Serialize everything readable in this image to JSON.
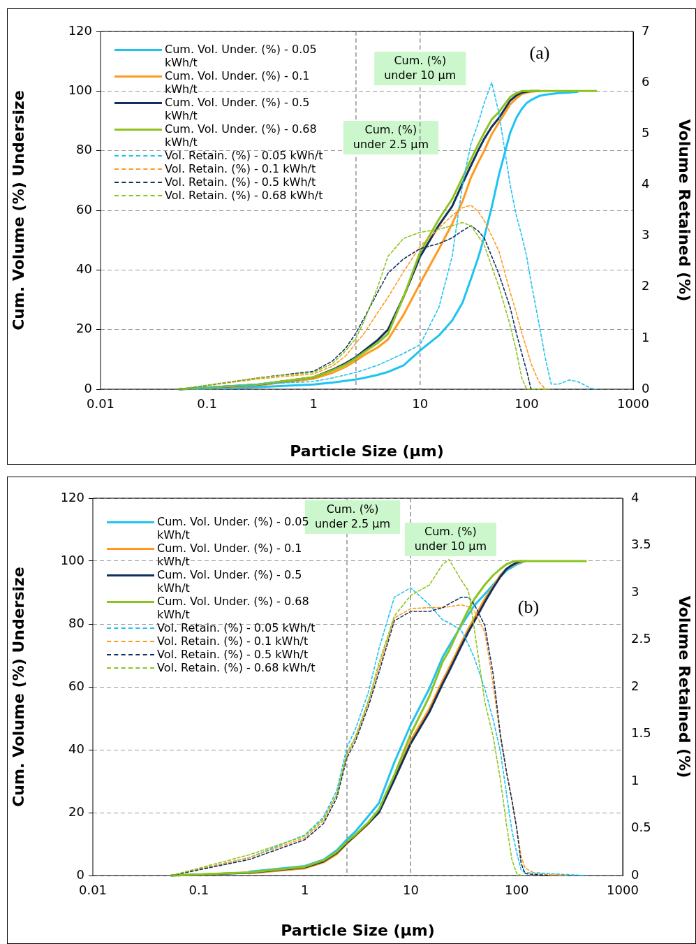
{
  "chart_data": [
    {
      "type": "line",
      "xlabel": "Particle Size (µm)",
      "ylabel": "Cum. Volume (%) Undersize",
      "y2label": "Volume Retained (%)",
      "log": "x",
      "grid": "y",
      "legend": "top left",
      "marker": "none",
      "xlim": [
        0.01,
        1000
      ],
      "xticks": [
        0.01,
        0.1,
        1,
        10,
        100,
        1000
      ],
      "ylim": [
        0,
        120
      ],
      "yticks": [
        0,
        20,
        40,
        60,
        80,
        100,
        120
      ],
      "y2lim": [
        0,
        7
      ],
      "y2ticks": [
        0,
        1,
        2,
        3,
        4,
        5,
        6,
        7
      ],
      "x": [
        0.055,
        0.3,
        1,
        1.5,
        2,
        2.5,
        3,
        4,
        5,
        7,
        10,
        15,
        20,
        25,
        30,
        35,
        40,
        47,
        55,
        70,
        80,
        90,
        100,
        110,
        130,
        150,
        170,
        200,
        250,
        300,
        400,
        450
      ],
      "series": [
        {
          "name": "Cum. Vol. Under. (%) - 0.05 kWh/t",
          "color": "#1ec3f2",
          "line_style": "solid",
          "values": [
            0,
            0.7,
            1.6,
            2.2,
            2.8,
            3.3,
            3.8,
            4.8,
            5.8,
            8,
            13,
            18,
            23,
            29,
            37,
            44,
            51,
            61,
            72,
            86,
            91,
            94,
            96,
            97,
            98.3,
            98.8,
            99,
            99.3,
            99.5,
            99.7,
            null,
            null
          ]
        },
        {
          "name": "Cum. Vol. Under. (%) - 0.1 kWh/t",
          "color": "#ff9a1e",
          "line_style": "solid",
          "values": [
            0,
            1.3,
            3.5,
            5.5,
            7.5,
            9.6,
            11.5,
            14,
            16.7,
            25,
            35.5,
            47,
            55.5,
            63,
            71,
            76,
            80,
            85.5,
            89.5,
            95.5,
            97.5,
            99,
            99.5,
            99.8,
            100,
            null,
            null,
            null,
            null,
            null,
            null,
            null
          ]
        },
        {
          "name": "Cum. Vol. Under. (%) - 0.5 kWh/t",
          "color": "#12305e",
          "line_style": "solid",
          "values": [
            0,
            1.5,
            4,
            6.5,
            8.7,
            10.8,
            13,
            16.5,
            20,
            31,
            44.5,
            55,
            61.4,
            69,
            75,
            80,
            84,
            88,
            91,
            96.8,
            98.5,
            99.5,
            99.8,
            100,
            100,
            null,
            null,
            null,
            null,
            null,
            null,
            null
          ]
        },
        {
          "name": "Cum. Vol. Under. (%) - 0.68 kWh/t",
          "color": "#8cc41e",
          "line_style": "solid",
          "values": [
            0,
            1.6,
            4,
            6.3,
            8.3,
            10.4,
            12.5,
            15.5,
            18.6,
            31,
            46,
            57,
            63.8,
            71,
            77,
            82,
            86,
            90.5,
            93,
            98,
            99.3,
            100,
            100,
            100,
            100,
            100,
            100,
            100,
            100,
            100,
            100,
            100
          ]
        },
        {
          "name": "Vol. Retain. (%) - 0.05 kWh/t",
          "color": "#1ec3f2",
          "line_style": "dashed",
          "axis": "y2",
          "values": [
            0,
            0.1,
            0.15,
            0.22,
            0.28,
            0.33,
            0.38,
            0.47,
            0.56,
            0.7,
            0.87,
            1.6,
            2.6,
            4,
            4.8,
            5.2,
            5.6,
            6,
            5.4,
            4,
            3.4,
            3,
            2.6,
            2.1,
            1.3,
            0.6,
            0.1,
            0.1,
            0.18,
            0.15,
            0.02,
            0
          ]
        },
        {
          "name": "Vol. Retain. (%) - 0.1 kWh/t",
          "color": "#ff9a1e",
          "line_style": "dashed",
          "axis": "y2",
          "values": [
            0,
            0.2,
            0.3,
            0.45,
            0.65,
            0.9,
            1.1,
            1.5,
            1.8,
            2.3,
            2.8,
            3.15,
            3.4,
            3.55,
            3.6,
            3.48,
            3.3,
            3,
            2.7,
            1.9,
            1.5,
            1.1,
            0.8,
            0.5,
            0.15,
            0,
            null,
            null,
            null,
            null,
            null,
            null
          ]
        },
        {
          "name": "Vol. Retain. (%) - 0.5 kWh/t",
          "color": "#12305e",
          "line_style": "dashed",
          "axis": "y2",
          "values": [
            0,
            0.22,
            0.35,
            0.55,
            0.8,
            1.1,
            1.4,
            1.9,
            2.27,
            2.55,
            2.75,
            2.85,
            2.96,
            3.1,
            3.2,
            3.1,
            2.96,
            2.6,
            2.25,
            1.6,
            1.1,
            0.7,
            0.36,
            0,
            null,
            null,
            null,
            null,
            null,
            null,
            null,
            null
          ]
        },
        {
          "name": "Vol. Retain. (%) - 0.68 kWh/t",
          "color": "#8cc41e",
          "line_style": "dashed",
          "axis": "y2",
          "values": [
            0,
            0.22,
            0.33,
            0.5,
            0.75,
            1,
            1.35,
            2,
            2.6,
            2.95,
            3.07,
            3.13,
            3.2,
            3.26,
            3.2,
            3,
            2.82,
            2.4,
            2,
            1.25,
            0.75,
            0.22,
            0,
            0,
            0,
            0,
            0,
            null,
            null,
            null,
            null,
            null
          ]
        }
      ],
      "ref_lines": [
        {
          "axis": "x",
          "value": 2.5,
          "label": "Cum. (%)\nunder 2.5 µm"
        },
        {
          "axis": "x",
          "value": 10,
          "label": "Cum. (%)\nunder 10 µm"
        }
      ],
      "annotations": [
        "(a)"
      ]
    },
    {
      "type": "line",
      "xlabel": "Particle Size (µm)",
      "ylabel": "Cum. Volume (%) Undersize",
      "y2label": "Volume Retained (%)",
      "log": "x",
      "grid": "y",
      "legend": "top left",
      "marker": "none",
      "xlim": [
        0.01,
        1000
      ],
      "xticks": [
        0.01,
        0.1,
        1,
        10,
        100,
        1000
      ],
      "ylim": [
        0,
        120
      ],
      "yticks": [
        0,
        20,
        40,
        60,
        80,
        100,
        120
      ],
      "y2lim": [
        0,
        4
      ],
      "y2ticks": [
        0,
        0.5,
        1,
        1.5,
        2,
        2.5,
        3,
        3.5,
        4
      ],
      "x": [
        0.055,
        0.3,
        1,
        1.5,
        2,
        2.5,
        3,
        4,
        5,
        7,
        10,
        15,
        20,
        23,
        30,
        35,
        40,
        50,
        60,
        70,
        80,
        90,
        100,
        110,
        120,
        150,
        200,
        300,
        450
      ],
      "series": [
        {
          "name": "Cum. Vol. Under. (%) - 0.05 kWh/t",
          "color": "#1ec3f2",
          "line_style": "solid",
          "values": [
            null,
            1.2,
            3,
            5,
            8,
            11.5,
            14,
            19,
            23,
            36,
            48,
            59.5,
            69.5,
            73,
            79.5,
            83,
            86,
            89.5,
            92.5,
            95,
            97,
            98,
            99,
            99.5,
            100,
            null,
            null,
            null,
            null
          ]
        },
        {
          "name": "Cum. Vol. Under. (%) - 0.1 kWh/t",
          "color": "#ff9a1e",
          "line_style": "solid",
          "values": [
            null,
            0.7,
            2.3,
            4.2,
            6.8,
            10.2,
            12.6,
            16.5,
            20.5,
            31,
            43,
            53,
            62,
            66,
            74,
            78.5,
            82,
            88,
            92,
            95.5,
            97.5,
            98.5,
            99.3,
            99.7,
            100,
            null,
            null,
            null,
            null
          ]
        },
        {
          "name": "Cum. Vol. Under. (%) - 0.5 kWh/t",
          "color": "#12305e",
          "line_style": "solid",
          "values": [
            0,
            0.9,
            2.6,
            4.5,
            7.2,
            10.4,
            12.8,
            16.7,
            20,
            30.5,
            42,
            52,
            61,
            65,
            73,
            77.5,
            81,
            87,
            91.5,
            95,
            97.5,
            98.7,
            99.5,
            100,
            null,
            null,
            null,
            null,
            null
          ]
        },
        {
          "name": "Cum. Vol. Under. (%) - 0.68 kWh/t",
          "color": "#8cc41e",
          "line_style": "solid",
          "values": [
            0,
            1,
            2.8,
            4.8,
            7.5,
            10.8,
            13,
            17,
            21,
            32,
            45,
            57,
            68,
            71.5,
            80,
            84.5,
            88,
            92.5,
            95.5,
            97.5,
            99,
            99.7,
            100,
            100,
            100,
            100,
            100,
            100,
            100
          ]
        },
        {
          "name": "Vol. Retain. (%) - 0.05 kWh/t",
          "color": "#1ec3f2",
          "line_style": "dashed",
          "axis": "y2",
          "values": [
            0,
            0.19,
            0.43,
            0.62,
            0.9,
            1.36,
            1.55,
            1.95,
            2.4,
            2.95,
            3.05,
            2.87,
            2.71,
            2.68,
            2.6,
            2.45,
            2.3,
            1.98,
            1.65,
            1.32,
            0.87,
            0.48,
            0.24,
            0.06,
            0.03,
            0.03,
            0.02,
            0.01,
            0
          ]
        },
        {
          "name": "Vol. Retain. (%) - 0.1 kWh/t",
          "color": "#ff9a1e",
          "line_style": "dashed",
          "axis": "y2",
          "values": [
            0,
            0.19,
            0.4,
            0.58,
            0.85,
            1.28,
            1.45,
            1.84,
            2.2,
            2.73,
            2.83,
            2.84,
            2.84,
            2.85,
            2.87,
            2.85,
            2.8,
            2.58,
            2.02,
            1.47,
            1.1,
            0.8,
            0.5,
            0.2,
            0.08,
            0.02,
            0.01,
            0,
            null
          ]
        },
        {
          "name": "Vol. Retain. (%) - 0.5 kWh/t",
          "color": "#12305e",
          "line_style": "dashed",
          "axis": "y2",
          "values": [
            0,
            0.17,
            0.38,
            0.55,
            0.82,
            1.25,
            1.42,
            1.8,
            2.15,
            2.7,
            2.8,
            2.8,
            2.84,
            2.88,
            2.95,
            2.95,
            2.87,
            2.65,
            2.13,
            1.5,
            1.1,
            0.8,
            0.5,
            0.13,
            0.02,
            0.01,
            0,
            null,
            null
          ]
        },
        {
          "name": "Vol. Retain. (%) - 0.68 kWh/t",
          "color": "#8cc41e",
          "line_style": "dashed",
          "axis": "y2",
          "values": [
            0,
            0.22,
            0.42,
            0.6,
            0.86,
            1.3,
            1.47,
            1.86,
            2.25,
            2.75,
            2.97,
            3.08,
            3.3,
            3.35,
            3.13,
            3.02,
            2.6,
            1.84,
            1.47,
            1.02,
            0.54,
            0.17,
            0.02,
            0,
            0,
            null,
            null,
            null,
            null
          ]
        }
      ],
      "ref_lines": [
        {
          "axis": "x",
          "value": 2.5,
          "label": "Cum. (%)\nunder 2.5 µm"
        },
        {
          "axis": "x",
          "value": 10,
          "label": "Cum. (%)\nunder 10 µm"
        }
      ],
      "annotations": [
        "(b)"
      ]
    }
  ]
}
